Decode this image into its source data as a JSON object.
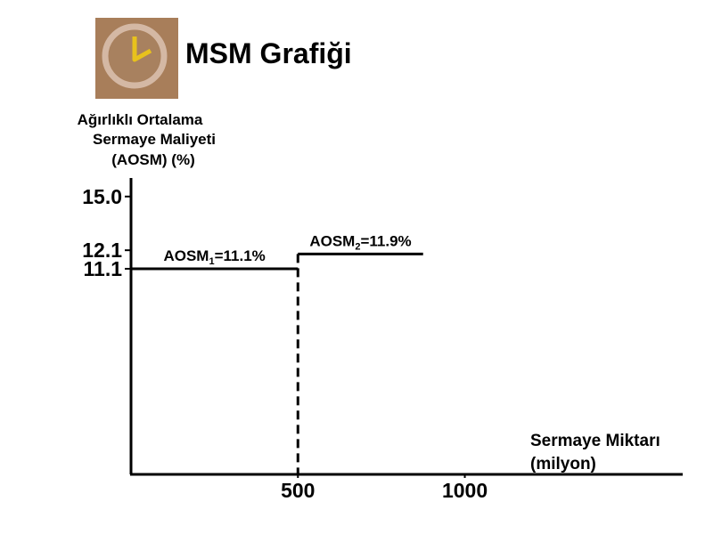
{
  "chart_data": {
    "type": "step-line",
    "title": "MSM Grafiği",
    "ylabel": [
      "Ağırlıklı Ortalama",
      "Sermaye Maliyeti",
      "(AOSM) (%)"
    ],
    "xlabel": [
      "Sermaye Miktarı",
      "(milyon)"
    ],
    "xlim": [
      0,
      1650
    ],
    "ylim": [
      0,
      16
    ],
    "xticks": [
      500,
      1000
    ],
    "yticks": [
      {
        "value": 15,
        "label": "15.0"
      },
      12.1,
      11.1
    ],
    "series": [
      {
        "color": "#000000",
        "x": [
          0,
          500
        ],
        "values": [
          11.1,
          11.1
        ]
      },
      {
        "color": "#000000",
        "x": [
          500,
          875
        ],
        "values": [
          11.9,
          11.9
        ]
      }
    ],
    "annotations": [
      {
        "label": "AOSM",
        "sub": "1",
        "text": "=11.1%"
      },
      {
        "label": "AOSM",
        "sub": "2",
        "text": "=11.9%"
      }
    ]
  }
}
